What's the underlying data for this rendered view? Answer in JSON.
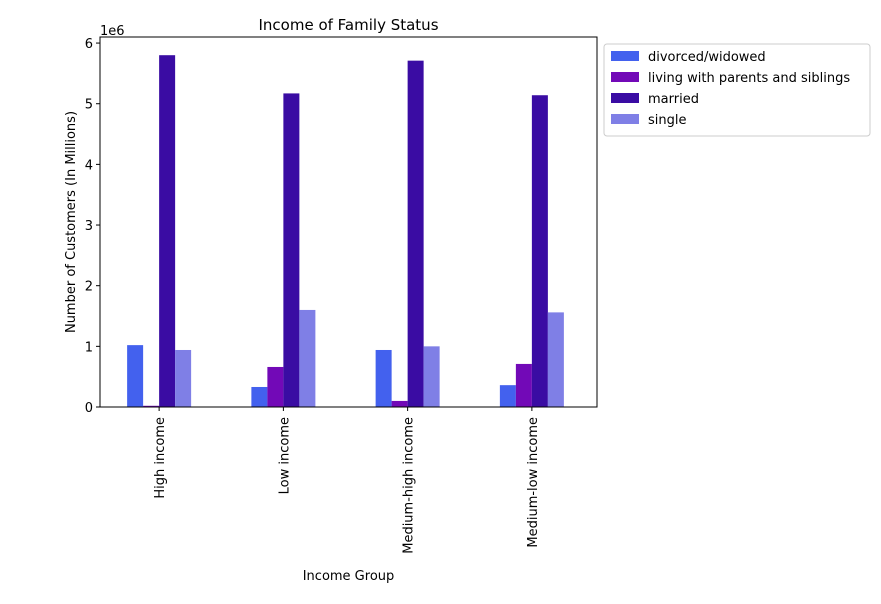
{
  "chart_data": {
    "type": "bar",
    "title": "Income of Family Status",
    "xlabel": "Income Group",
    "ylabel": "Number of Customers (In Millions)",
    "offset_label": "1e6",
    "ylim": [
      0,
      6.1
    ],
    "yticks": [
      0,
      1,
      2,
      3,
      4,
      5,
      6
    ],
    "categories": [
      "High income",
      "Low income",
      "Medium-high income",
      "Medium-low income"
    ],
    "series": [
      {
        "name": "divorced/widowed",
        "color": "#4361ee",
        "values": [
          1.02,
          0.33,
          0.94,
          0.36
        ]
      },
      {
        "name": "living with parents and siblings",
        "color": "#7209b7",
        "values": [
          0.02,
          0.66,
          0.1,
          0.71
        ]
      },
      {
        "name": "married",
        "color": "#3a0ca3",
        "values": [
          5.8,
          5.17,
          5.71,
          5.14
        ]
      },
      {
        "name": "single",
        "color": "#7f7fe6",
        "values": [
          0.94,
          1.6,
          1.0,
          1.56
        ]
      }
    ],
    "grid": false,
    "legend_position": "outside-upper-right"
  }
}
